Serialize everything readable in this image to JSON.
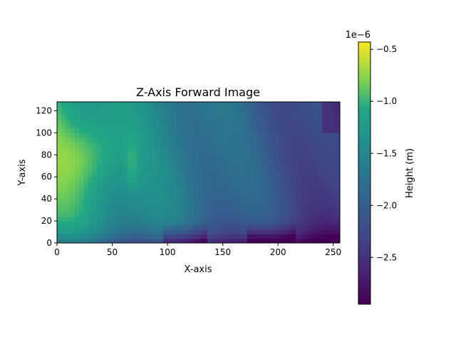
{
  "chart_data": {
    "type": "heatmap",
    "title": "Z-Axis Forward Image",
    "xlabel": "X-axis",
    "ylabel": "Y-axis",
    "xlim": [
      0,
      256
    ],
    "ylim": [
      0,
      128
    ],
    "xticks": [
      0,
      50,
      100,
      150,
      200,
      250
    ],
    "yticks": [
      0,
      20,
      40,
      60,
      80,
      100,
      120
    ],
    "colormap": "viridis",
    "colorbar": {
      "label": "Height (m)",
      "offset_text": "1e−6",
      "range": [
        -2.95,
        -0.43
      ],
      "ticks": [
        {
          "value": -0.5,
          "label": "−0.5"
        },
        {
          "value": -1.0,
          "label": "−1.0"
        },
        {
          "value": -1.5,
          "label": "−1.5"
        },
        {
          "value": -2.0,
          "label": "−2.0"
        },
        {
          "value": -2.5,
          "label": "−2.5"
        }
      ]
    }
  }
}
